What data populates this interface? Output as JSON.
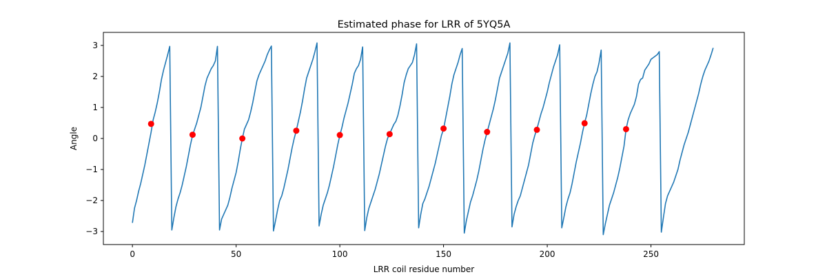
{
  "chart_data": {
    "type": "line",
    "title": "Estimated phase for LRR of 5YQ5A",
    "xlabel": "LRR coil residue number",
    "ylabel": "Angle",
    "xlim": [
      -14,
      295
    ],
    "ylim": [
      -3.42,
      3.42
    ],
    "x_ticks": [
      0,
      50,
      100,
      150,
      200,
      250
    ],
    "y_ticks": [
      -3,
      -2,
      -1,
      0,
      1,
      2,
      3
    ],
    "grid": false,
    "series": [
      {
        "kind": "line",
        "color": "#1f77b4",
        "points": [
          [
            0,
            -2.72
          ],
          [
            1,
            -2.25
          ],
          [
            2,
            -2.0
          ],
          [
            3,
            -1.7
          ],
          [
            4,
            -1.45
          ],
          [
            5,
            -1.15
          ],
          [
            6,
            -0.85
          ],
          [
            7,
            -0.5
          ],
          [
            8,
            -0.15
          ],
          [
            9,
            0.2
          ],
          [
            10,
            0.6
          ],
          [
            11,
            0.85
          ],
          [
            12,
            1.15
          ],
          [
            13,
            1.5
          ],
          [
            14,
            1.9
          ],
          [
            15,
            2.2
          ],
          [
            16,
            2.45
          ],
          [
            17,
            2.7
          ],
          [
            18,
            2.97
          ],
          [
            19,
            -2.95
          ],
          [
            20,
            -2.55
          ],
          [
            21,
            -2.2
          ],
          [
            22,
            -1.95
          ],
          [
            23,
            -1.75
          ],
          [
            24,
            -1.5
          ],
          [
            25,
            -1.2
          ],
          [
            26,
            -0.9
          ],
          [
            27,
            -0.55
          ],
          [
            28,
            -0.2
          ],
          [
            29,
            0.1
          ],
          [
            30,
            0.3
          ],
          [
            31,
            0.5
          ],
          [
            32,
            0.75
          ],
          [
            33,
            1.0
          ],
          [
            34,
            1.35
          ],
          [
            35,
            1.7
          ],
          [
            36,
            1.95
          ],
          [
            37,
            2.1
          ],
          [
            38,
            2.25
          ],
          [
            39,
            2.35
          ],
          [
            40,
            2.5
          ],
          [
            41,
            2.97
          ],
          [
            42,
            -2.95
          ],
          [
            43,
            -2.6
          ],
          [
            44,
            -2.45
          ],
          [
            45,
            -2.3
          ],
          [
            46,
            -2.15
          ],
          [
            47,
            -1.9
          ],
          [
            48,
            -1.6
          ],
          [
            49,
            -1.35
          ],
          [
            50,
            -1.1
          ],
          [
            51,
            -0.75
          ],
          [
            52,
            -0.35
          ],
          [
            53,
            0.0
          ],
          [
            54,
            0.3
          ],
          [
            55,
            0.45
          ],
          [
            56,
            0.6
          ],
          [
            57,
            0.85
          ],
          [
            58,
            1.15
          ],
          [
            59,
            1.5
          ],
          [
            60,
            1.85
          ],
          [
            61,
            2.05
          ],
          [
            62,
            2.2
          ],
          [
            63,
            2.35
          ],
          [
            64,
            2.5
          ],
          [
            65,
            2.7
          ],
          [
            66,
            2.85
          ],
          [
            67,
            2.98
          ],
          [
            68,
            -2.98
          ],
          [
            69,
            -2.65
          ],
          [
            70,
            -2.3
          ],
          [
            71,
            -2.0
          ],
          [
            72,
            -1.85
          ],
          [
            73,
            -1.6
          ],
          [
            74,
            -1.3
          ],
          [
            75,
            -1.0
          ],
          [
            76,
            -0.65
          ],
          [
            77,
            -0.3
          ],
          [
            78,
            0.0
          ],
          [
            79,
            0.25
          ],
          [
            80,
            0.55
          ],
          [
            81,
            0.85
          ],
          [
            82,
            1.2
          ],
          [
            83,
            1.6
          ],
          [
            84,
            1.95
          ],
          [
            85,
            2.15
          ],
          [
            86,
            2.35
          ],
          [
            87,
            2.55
          ],
          [
            88,
            2.8
          ],
          [
            89,
            3.08
          ],
          [
            90,
            -2.82
          ],
          [
            91,
            -2.45
          ],
          [
            92,
            -2.15
          ],
          [
            93,
            -1.95
          ],
          [
            94,
            -1.75
          ],
          [
            95,
            -1.5
          ],
          [
            96,
            -1.2
          ],
          [
            97,
            -0.9
          ],
          [
            98,
            -0.55
          ],
          [
            99,
            -0.2
          ],
          [
            100,
            0.1
          ],
          [
            101,
            0.35
          ],
          [
            102,
            0.65
          ],
          [
            103,
            0.9
          ],
          [
            104,
            1.15
          ],
          [
            105,
            1.45
          ],
          [
            106,
            1.75
          ],
          [
            107,
            2.1
          ],
          [
            108,
            2.25
          ],
          [
            109,
            2.35
          ],
          [
            110,
            2.55
          ],
          [
            111,
            2.95
          ],
          [
            112,
            -2.97
          ],
          [
            113,
            -2.55
          ],
          [
            114,
            -2.25
          ],
          [
            115,
            -2.05
          ],
          [
            116,
            -1.85
          ],
          [
            117,
            -1.65
          ],
          [
            118,
            -1.4
          ],
          [
            119,
            -1.15
          ],
          [
            120,
            -0.85
          ],
          [
            121,
            -0.55
          ],
          [
            122,
            -0.25
          ],
          [
            123,
            0.0
          ],
          [
            124,
            0.15
          ],
          [
            125,
            0.3
          ],
          [
            126,
            0.45
          ],
          [
            127,
            0.55
          ],
          [
            128,
            0.75
          ],
          [
            129,
            1.05
          ],
          [
            130,
            1.4
          ],
          [
            131,
            1.8
          ],
          [
            132,
            2.05
          ],
          [
            133,
            2.25
          ],
          [
            134,
            2.35
          ],
          [
            135,
            2.45
          ],
          [
            136,
            2.7
          ],
          [
            137,
            3.05
          ],
          [
            138,
            -2.88
          ],
          [
            139,
            -2.45
          ],
          [
            140,
            -2.1
          ],
          [
            141,
            -1.95
          ],
          [
            142,
            -1.75
          ],
          [
            143,
            -1.55
          ],
          [
            144,
            -1.3
          ],
          [
            145,
            -1.05
          ],
          [
            146,
            -0.8
          ],
          [
            147,
            -0.5
          ],
          [
            148,
            -0.2
          ],
          [
            149,
            0.1
          ],
          [
            150,
            0.3
          ],
          [
            151,
            0.65
          ],
          [
            152,
            1.0
          ],
          [
            153,
            1.35
          ],
          [
            154,
            1.75
          ],
          [
            155,
            2.05
          ],
          [
            156,
            2.25
          ],
          [
            157,
            2.45
          ],
          [
            158,
            2.7
          ],
          [
            159,
            2.9
          ],
          [
            160,
            -3.05
          ],
          [
            161,
            -2.65
          ],
          [
            162,
            -2.35
          ],
          [
            163,
            -2.05
          ],
          [
            164,
            -1.85
          ],
          [
            165,
            -1.6
          ],
          [
            166,
            -1.35
          ],
          [
            167,
            -1.05
          ],
          [
            168,
            -0.7
          ],
          [
            169,
            -0.35
          ],
          [
            170,
            -0.05
          ],
          [
            171,
            0.2
          ],
          [
            172,
            0.45
          ],
          [
            173,
            0.7
          ],
          [
            174,
            0.95
          ],
          [
            175,
            1.25
          ],
          [
            176,
            1.6
          ],
          [
            177,
            1.95
          ],
          [
            178,
            2.15
          ],
          [
            179,
            2.35
          ],
          [
            180,
            2.55
          ],
          [
            181,
            2.75
          ],
          [
            182,
            3.08
          ],
          [
            183,
            -2.85
          ],
          [
            184,
            -2.45
          ],
          [
            185,
            -2.2
          ],
          [
            186,
            -2.0
          ],
          [
            187,
            -1.85
          ],
          [
            188,
            -1.6
          ],
          [
            189,
            -1.35
          ],
          [
            190,
            -1.1
          ],
          [
            191,
            -0.85
          ],
          [
            192,
            -0.5
          ],
          [
            193,
            -0.15
          ],
          [
            194,
            0.1
          ],
          [
            195,
            0.3
          ],
          [
            196,
            0.55
          ],
          [
            197,
            0.8
          ],
          [
            198,
            1.0
          ],
          [
            199,
            1.25
          ],
          [
            200,
            1.5
          ],
          [
            201,
            1.8
          ],
          [
            202,
            2.05
          ],
          [
            203,
            2.3
          ],
          [
            204,
            2.5
          ],
          [
            205,
            2.7
          ],
          [
            206,
            3.02
          ],
          [
            207,
            -2.88
          ],
          [
            208,
            -2.55
          ],
          [
            209,
            -2.2
          ],
          [
            210,
            -1.95
          ],
          [
            211,
            -1.75
          ],
          [
            212,
            -1.45
          ],
          [
            213,
            -1.1
          ],
          [
            214,
            -0.75
          ],
          [
            215,
            -0.45
          ],
          [
            216,
            -0.15
          ],
          [
            217,
            0.2
          ],
          [
            218,
            0.5
          ],
          [
            219,
            0.75
          ],
          [
            220,
            1.1
          ],
          [
            221,
            1.45
          ],
          [
            222,
            1.75
          ],
          [
            223,
            2.0
          ],
          [
            224,
            2.15
          ],
          [
            225,
            2.45
          ],
          [
            226,
            2.85
          ],
          [
            227,
            -3.1
          ],
          [
            228,
            -2.75
          ],
          [
            229,
            -2.45
          ],
          [
            230,
            -2.15
          ],
          [
            231,
            -1.95
          ],
          [
            232,
            -1.75
          ],
          [
            233,
            -1.5
          ],
          [
            234,
            -1.25
          ],
          [
            235,
            -0.95
          ],
          [
            236,
            -0.6
          ],
          [
            237,
            -0.25
          ],
          [
            238,
            0.3
          ],
          [
            239,
            0.6
          ],
          [
            240,
            0.8
          ],
          [
            241,
            0.95
          ],
          [
            242,
            1.1
          ],
          [
            243,
            1.35
          ],
          [
            244,
            1.75
          ],
          [
            245,
            1.9
          ],
          [
            246,
            1.95
          ],
          [
            247,
            2.2
          ],
          [
            248,
            2.3
          ],
          [
            249,
            2.4
          ],
          [
            250,
            2.55
          ],
          [
            251,
            2.6
          ],
          [
            252,
            2.65
          ],
          [
            253,
            2.7
          ],
          [
            254,
            2.8
          ],
          [
            255,
            -3.02
          ],
          [
            256,
            -2.55
          ],
          [
            257,
            -2.1
          ],
          [
            258,
            -1.85
          ],
          [
            259,
            -1.7
          ],
          [
            260,
            -1.55
          ],
          [
            261,
            -1.4
          ],
          [
            262,
            -1.2
          ],
          [
            263,
            -1.0
          ],
          [
            264,
            -0.7
          ],
          [
            265,
            -0.45
          ],
          [
            266,
            -0.2
          ],
          [
            267,
            0.0
          ],
          [
            268,
            0.2
          ],
          [
            269,
            0.45
          ],
          [
            270,
            0.7
          ],
          [
            271,
            0.95
          ],
          [
            272,
            1.2
          ],
          [
            273,
            1.45
          ],
          [
            274,
            1.75
          ],
          [
            275,
            2.0
          ],
          [
            276,
            2.2
          ],
          [
            277,
            2.35
          ],
          [
            278,
            2.5
          ],
          [
            279,
            2.7
          ],
          [
            280,
            2.92
          ]
        ]
      },
      {
        "kind": "scatter",
        "color": "#ff0000",
        "points": [
          [
            9,
            0.47
          ],
          [
            29,
            0.12
          ],
          [
            53,
            0.0
          ],
          [
            79,
            0.25
          ],
          [
            100,
            0.11
          ],
          [
            124,
            0.14
          ],
          [
            150,
            0.32
          ],
          [
            171,
            0.21
          ],
          [
            195,
            0.28
          ],
          [
            218,
            0.49
          ],
          [
            238,
            0.3
          ]
        ]
      }
    ]
  }
}
